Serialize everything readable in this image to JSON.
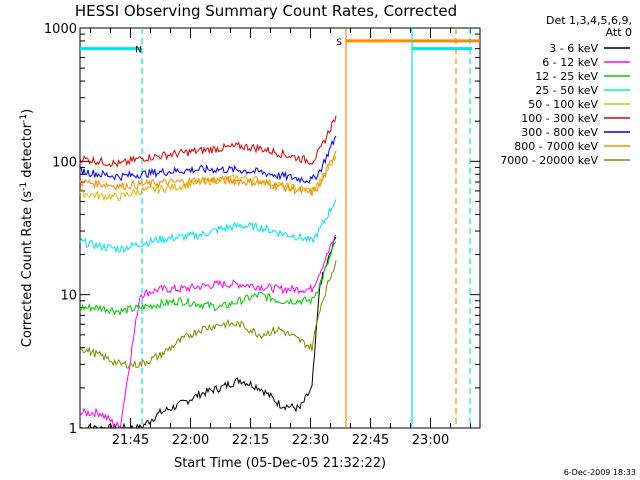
{
  "chart_data": {
    "type": "line",
    "title": "HESSI Observing Summary Count Rates, Corrected",
    "xlabel": "Start Time (05-Dec-05 21:32:22)",
    "ylabel_main": "Corrected Count Rate (s",
    "ylabel_sup1": "-1",
    "ylabel_mid": " detector",
    "ylabel_sup2": "-1",
    "ylabel_end": ")",
    "yscale": "log",
    "ylim": [
      1,
      1000
    ],
    "x_unit": "minutes after 21:32:22",
    "xlim": [
      0,
      100
    ],
    "x_ticks": [
      {
        "t": 12.63,
        "label": "21:45"
      },
      {
        "t": 27.63,
        "label": "22:00"
      },
      {
        "t": 42.63,
        "label": "22:15"
      },
      {
        "t": 57.63,
        "label": "22:30"
      },
      {
        "t": 72.63,
        "label": "22:45"
      },
      {
        "t": 87.63,
        "label": "23:00"
      }
    ],
    "y_ticks": [
      {
        "v": 1,
        "label": "1"
      },
      {
        "v": 10,
        "label": "10"
      },
      {
        "v": 100,
        "label": "100"
      },
      {
        "v": 1000,
        "label": "1000"
      }
    ],
    "legend_header": [
      "Det 1,3,4,5,6,9,",
      "Att 0"
    ],
    "series": [
      {
        "name": "3 - 6 keV",
        "color": "#000000",
        "x": [
          0,
          5,
          10,
          15,
          20,
          25,
          30,
          35,
          40,
          45,
          50,
          55,
          58,
          60,
          64
        ],
        "y": [
          1,
          1,
          1,
          1,
          1.3,
          1.5,
          1.8,
          2.0,
          2.3,
          2.0,
          1.5,
          1.4,
          2.0,
          12,
          27
        ]
      },
      {
        "name": "6 - 12 keV",
        "color": "#ff00ff",
        "x": [
          0,
          5,
          10,
          15,
          20,
          25,
          30,
          35,
          40,
          45,
          50,
          55,
          58,
          60,
          64
        ],
        "y": [
          1.3,
          1.3,
          1,
          10,
          11,
          11,
          11.5,
          12,
          12,
          11.5,
          11,
          11,
          11,
          15,
          28
        ]
      },
      {
        "name": "12 - 25 keV",
        "color": "#00cc00",
        "x": [
          0,
          5,
          10,
          15,
          20,
          25,
          30,
          35,
          40,
          45,
          50,
          55,
          58,
          60,
          64
        ],
        "y": [
          8,
          8,
          7.5,
          8,
          8.5,
          9,
          8.5,
          8,
          9,
          10,
          9,
          9,
          9,
          12,
          25
        ]
      },
      {
        "name": "25 - 50 keV",
        "color": "#00e5ee",
        "x": [
          0,
          5,
          10,
          15,
          20,
          25,
          30,
          35,
          40,
          45,
          50,
          55,
          58,
          60,
          64
        ],
        "y": [
          25,
          23,
          22,
          24,
          26,
          27,
          28,
          31,
          33,
          32,
          29,
          27,
          25,
          31,
          52
        ]
      },
      {
        "name": "50 - 100 keV",
        "color": "#ddbb00",
        "x": [
          0,
          5,
          10,
          15,
          20,
          25,
          30,
          35,
          40,
          45,
          50,
          55,
          58,
          60,
          64
        ],
        "y": [
          58,
          55,
          54,
          60,
          62,
          65,
          70,
          73,
          75,
          72,
          66,
          62,
          60,
          70,
          110
        ]
      },
      {
        "name": "100 - 300 keV",
        "color": "#dd0000",
        "x": [
          0,
          5,
          10,
          15,
          20,
          25,
          30,
          35,
          40,
          45,
          50,
          55,
          58,
          60,
          64
        ],
        "y": [
          105,
          100,
          95,
          105,
          110,
          115,
          120,
          125,
          130,
          125,
          115,
          105,
          100,
          120,
          220
        ]
      },
      {
        "name": "300 - 800 keV",
        "color": "#0000ee",
        "x": [
          0,
          5,
          10,
          15,
          20,
          25,
          30,
          35,
          40,
          45,
          50,
          55,
          58,
          60,
          64
        ],
        "y": [
          85,
          80,
          77,
          80,
          83,
          85,
          87,
          87,
          86,
          83,
          78,
          74,
          72,
          85,
          155
        ]
      },
      {
        "name": "800 - 7000 keV",
        "color": "#ff8800",
        "x": [
          0,
          5,
          10,
          15,
          20,
          25,
          30,
          35,
          40,
          45,
          50,
          55,
          58,
          60,
          64
        ],
        "y": [
          70,
          68,
          65,
          67,
          69,
          70,
          72,
          72,
          71,
          69,
          65,
          60,
          58,
          66,
          120
        ]
      },
      {
        "name": "7000 - 20000 keV",
        "color": "#888800",
        "x": [
          0,
          5,
          10,
          15,
          20,
          25,
          30,
          35,
          40,
          45,
          50,
          55,
          58,
          60,
          64
        ],
        "y": [
          4,
          3.5,
          3,
          3,
          3.5,
          4.5,
          5.5,
          6,
          6,
          5,
          5.5,
          4.5,
          4,
          8,
          18
        ]
      }
    ],
    "bars": [
      {
        "label": "N",
        "color": "#00e5ee",
        "x_start": 0,
        "x_end": 15.5,
        "level": 700
      },
      {
        "label": "S",
        "color": "#ff8800",
        "x_start": 66.5,
        "x_end": 100,
        "level": 800
      },
      {
        "label": "",
        "color": "#00e5ee",
        "x_start": 83,
        "x_end": 98,
        "level": 700
      }
    ],
    "vlines": [
      {
        "t": 15.5,
        "color": "#00e5ee",
        "dash": true
      },
      {
        "t": 66.5,
        "color": "#ff8800",
        "dash": false
      },
      {
        "t": 83,
        "color": "#00e5ee",
        "dash": false
      },
      {
        "t": 94,
        "color": "#ff8800",
        "dash": true
      },
      {
        "t": 97.5,
        "color": "#00e5ee",
        "dash": true
      }
    ]
  },
  "footer_date": "6-Dec-2009 18:33"
}
